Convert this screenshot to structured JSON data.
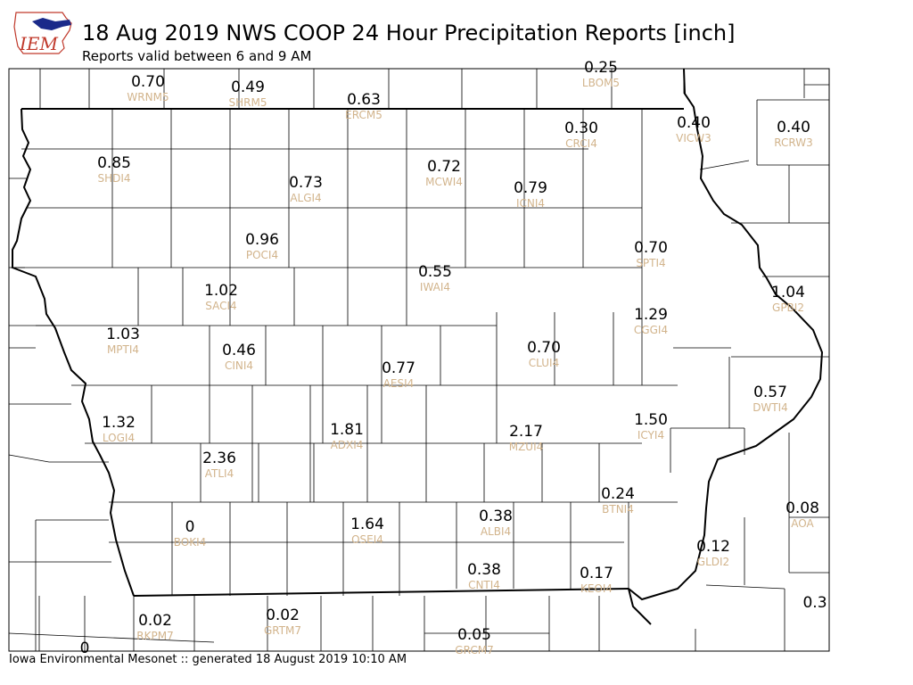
{
  "header": {
    "logo_text": "IEM",
    "title": "18 Aug 2019 NWS COOP 24 Hour Precipitation Reports [inch]",
    "subtitle": "Reports valid between 6 and 9 AM"
  },
  "footer": {
    "text": "Iowa Environmental Mesonet :: generated 18 August 2019 10:10 AM"
  },
  "colors": {
    "value_text": "#000000",
    "station_text": "#d2b48c",
    "logo_red": "#c0392b",
    "logo_blue": "#1a2a8a"
  },
  "stations": [
    {
      "id": "WRNM5",
      "value": "0.70"
    },
    {
      "id": "SHRM5",
      "value": "0.49"
    },
    {
      "id": "ERCM5",
      "value": "0.63"
    },
    {
      "id": "LBOM5",
      "value": "0.25"
    },
    {
      "id": "CRCI4",
      "value": "0.30"
    },
    {
      "id": "VICW3",
      "value": "0.40"
    },
    {
      "id": "RCRW3",
      "value": "0.40"
    },
    {
      "id": "SHDI4",
      "value": "0.85"
    },
    {
      "id": "ALGI4",
      "value": "0.73"
    },
    {
      "id": "MCWI4",
      "value": "0.72"
    },
    {
      "id": "ICNI4",
      "value": "0.79"
    },
    {
      "id": "POCI4",
      "value": "0.96"
    },
    {
      "id": "SPTI4",
      "value": "0.70"
    },
    {
      "id": "IWAI4",
      "value": "0.55"
    },
    {
      "id": "GPBI2",
      "value": "1.04"
    },
    {
      "id": "SACI4",
      "value": "1.02"
    },
    {
      "id": "CGGI4",
      "value": "1.29"
    },
    {
      "id": "MPTI4",
      "value": "1.03"
    },
    {
      "id": "CINI4",
      "value": "0.46"
    },
    {
      "id": "CLUI4",
      "value": "0.70"
    },
    {
      "id": "AESI4",
      "value": "0.77"
    },
    {
      "id": "DWTI4",
      "value": "0.57"
    },
    {
      "id": "LOGI4",
      "value": "1.32"
    },
    {
      "id": "ADXI4",
      "value": "1.81"
    },
    {
      "id": "MZUI4",
      "value": "2.17"
    },
    {
      "id": "ICYI4",
      "value": "1.50"
    },
    {
      "id": "ATLI4",
      "value": "2.36"
    },
    {
      "id": "BTNI4",
      "value": "0.24"
    },
    {
      "id": "AOA",
      "value": "0.08"
    },
    {
      "id": "ALBI4",
      "value": "0.38"
    },
    {
      "id": "BOKI4",
      "value": "0"
    },
    {
      "id": "OSEI4",
      "value": "1.64"
    },
    {
      "id": "GLDI2",
      "value": "0.12"
    },
    {
      "id": "CNTI4",
      "value": "0.38"
    },
    {
      "id": "KEOI4",
      "value": "0.17"
    },
    {
      "id": "RKPM7",
      "value": "0.02"
    },
    {
      "id": "GRTM7",
      "value": "0.02"
    },
    {
      "id": "GRCM7",
      "value": "0.05"
    },
    {
      "id": "",
      "value": "0.3"
    },
    {
      "id": "",
      "value": "0"
    }
  ]
}
